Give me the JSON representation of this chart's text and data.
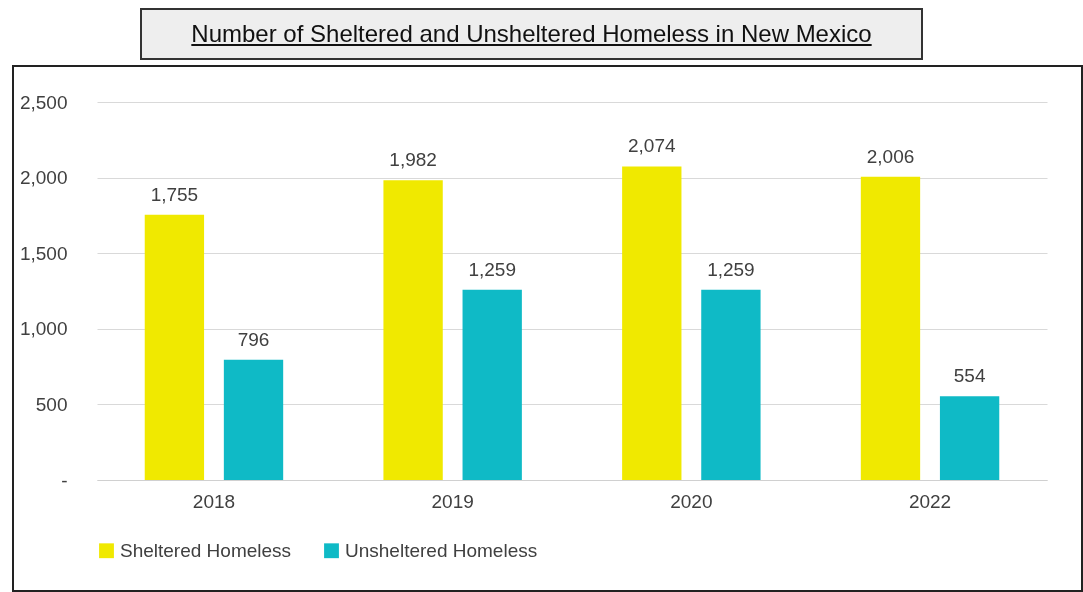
{
  "chart_data": {
    "type": "bar",
    "title": "Number of Sheltered and Unsheltered Homeless in New Mexico",
    "categories": [
      "2018",
      "2019",
      "2020",
      "2022"
    ],
    "series": [
      {
        "name": "Sheltered Homeless",
        "color": "#f0e900",
        "values": [
          1755,
          1982,
          2074,
          2006
        ],
        "value_labels": [
          "1,755",
          "1,982",
          "2,074",
          "2,006"
        ]
      },
      {
        "name": "Unsheltered Homeless",
        "color": "#0fbac6",
        "values": [
          796,
          1259,
          1259,
          554
        ],
        "value_labels": [
          "796",
          "1,259",
          "1,259",
          "554"
        ]
      }
    ],
    "ylim": [
      0,
      2500
    ],
    "yticks": [
      {
        "value": 0,
        "label": "-"
      },
      {
        "value": 500,
        "label": "500"
      },
      {
        "value": 1000,
        "label": "1,000"
      },
      {
        "value": 1500,
        "label": "1,500"
      },
      {
        "value": 2000,
        "label": "2,000"
      },
      {
        "value": 2500,
        "label": "2,500"
      }
    ],
    "grid": "y",
    "legend": "bottom"
  }
}
